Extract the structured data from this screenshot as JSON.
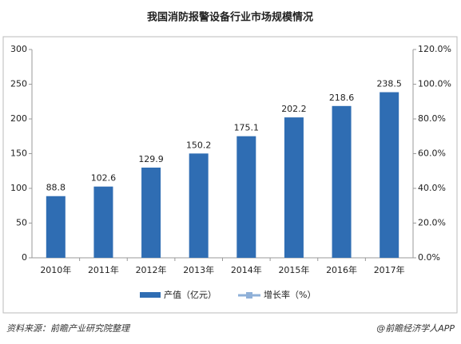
{
  "chart_data": {
    "type": "bar",
    "title": "我国消防报警设备行业市场规模情况",
    "categories": [
      "2010年",
      "2011年",
      "2012年",
      "2013年",
      "2014年",
      "2015年",
      "2016年",
      "2017年"
    ],
    "series": [
      {
        "name": "产值（亿元）",
        "color": "#2f6db3",
        "values": [
          88.8,
          102.6,
          129.9,
          150.2,
          175.1,
          202.2,
          218.6,
          238.5
        ]
      },
      {
        "name": "增长率（%）",
        "color": "#8fb0d8",
        "axis": "y2",
        "values": [
          null,
          null,
          null,
          null,
          null,
          null,
          null,
          null
        ]
      }
    ],
    "ylim": [
      0,
      300
    ],
    "yticks": [
      0,
      50,
      100,
      150,
      200,
      250,
      300
    ],
    "y2lim": [
      0,
      120
    ],
    "y2ticks": [
      {
        "value": 0,
        "label": "0.0%"
      },
      {
        "value": 20,
        "label": "20.0%"
      },
      {
        "value": 40,
        "label": "40.0%"
      },
      {
        "value": 60,
        "label": "60.0%"
      },
      {
        "value": 80,
        "label": "80.0%"
      },
      {
        "value": 100,
        "label": "100.0%"
      },
      {
        "value": 120,
        "label": "120.0%"
      }
    ],
    "source": "资料来源：前瞻产业研究院整理",
    "credit": "@前瞻经济学人APP"
  }
}
